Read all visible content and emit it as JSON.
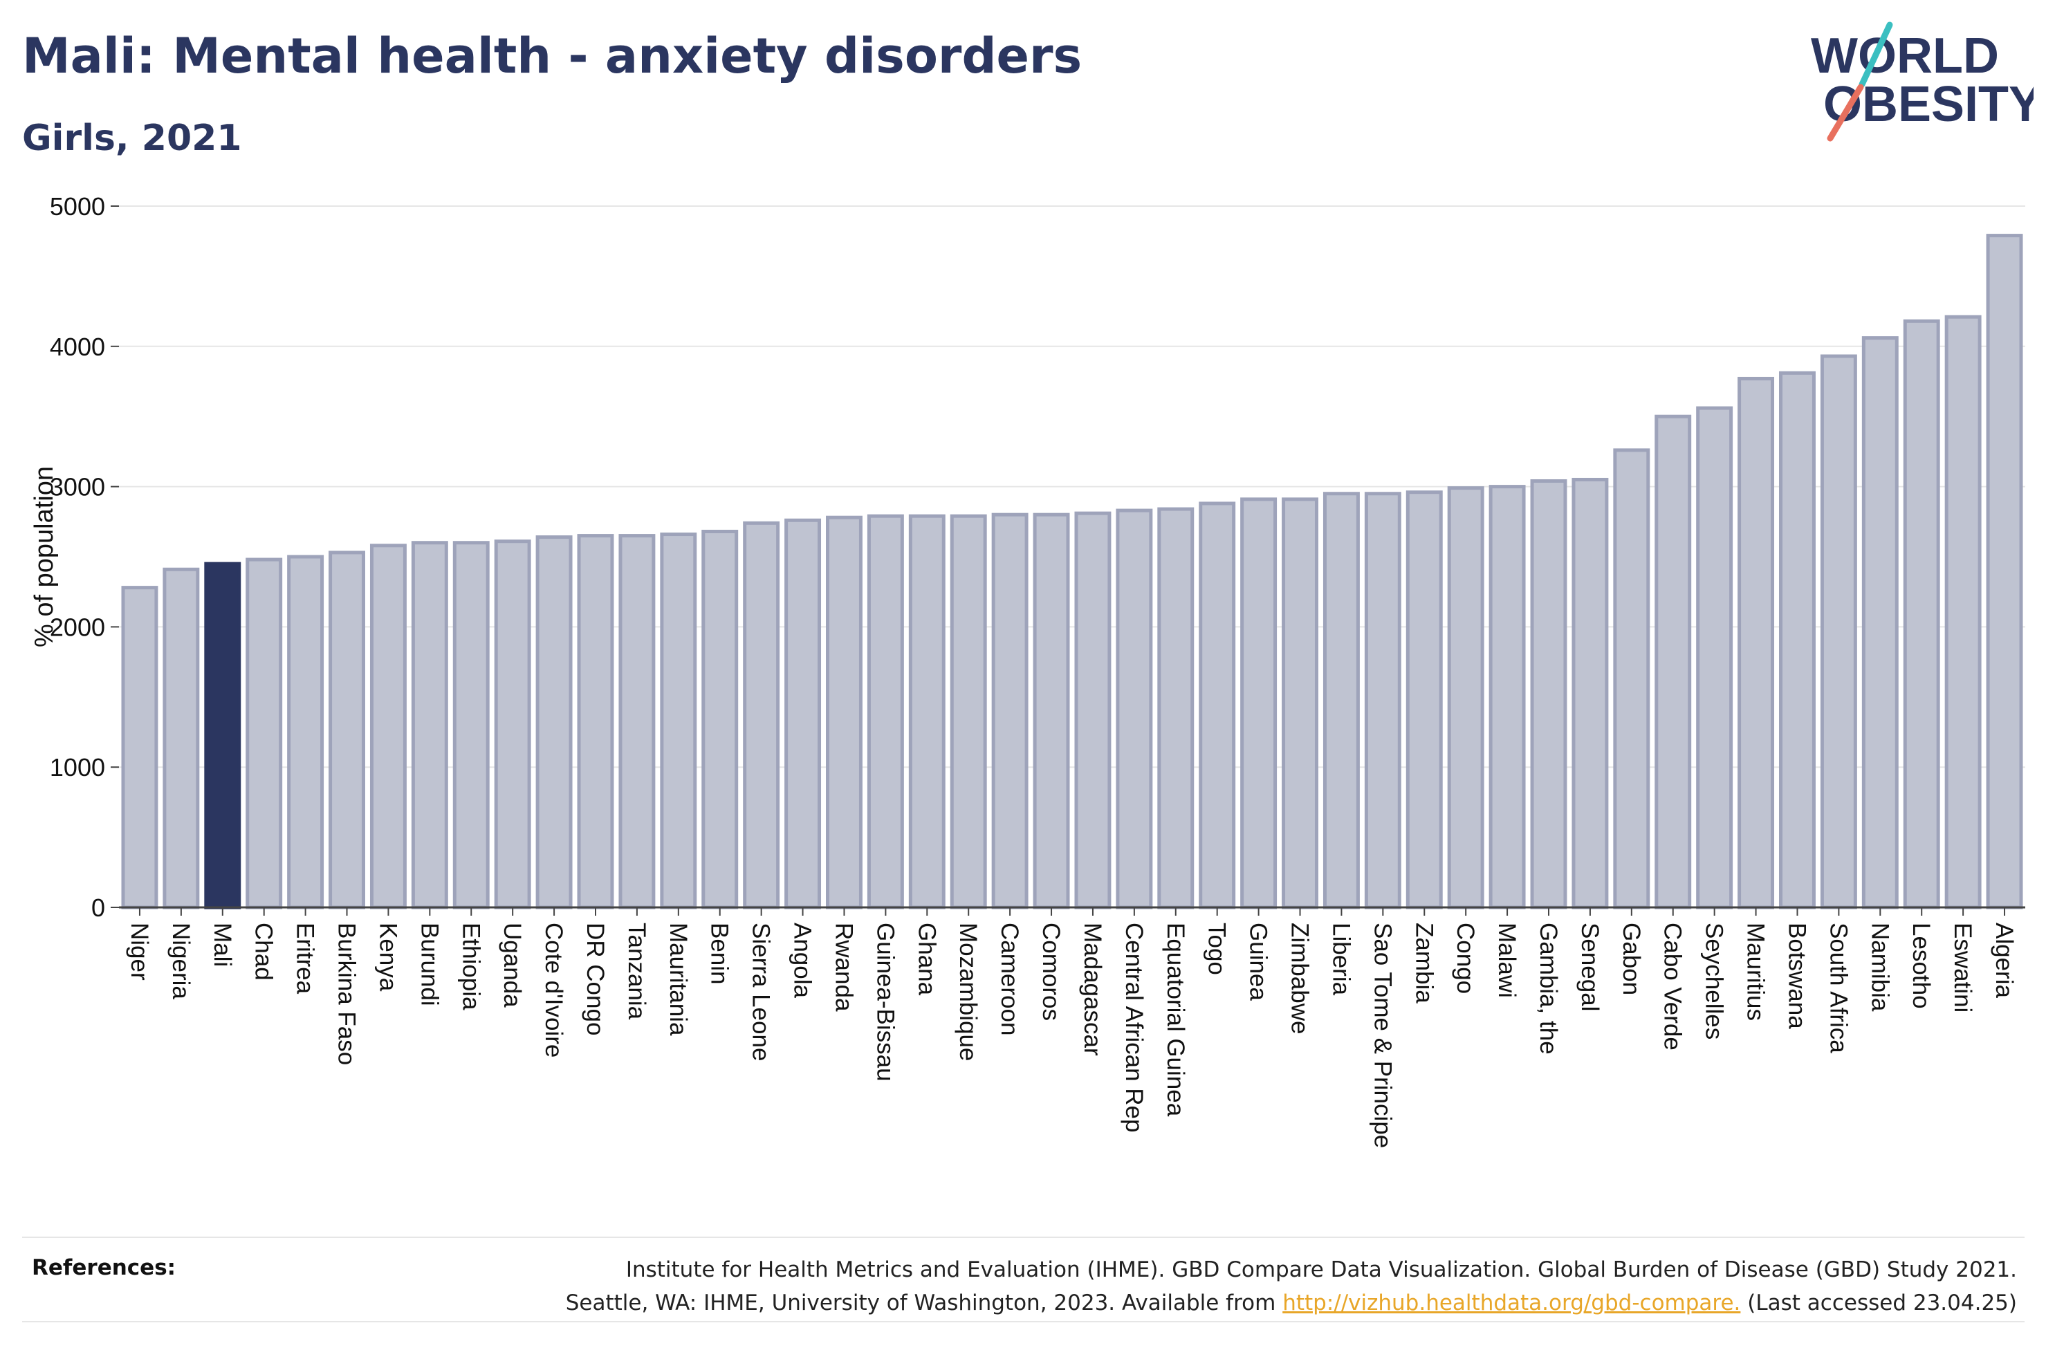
{
  "header": {
    "title": "Mali: Mental health - anxiety disorders",
    "subtitle": "Girls, 2021"
  },
  "logo": {
    "line1": "WORLD",
    "line2": "OBESITY",
    "colors": {
      "text": "#2b3660",
      "slash_top": "#3bbfc1",
      "slash_bottom": "#e8705e"
    }
  },
  "colors": {
    "bar": "#bfc3d1",
    "bar_stroke": "#9ea3ba",
    "highlight": "#2b3660",
    "grid": "#e6e6e6",
    "axis": "#444444"
  },
  "chart_data": {
    "type": "bar",
    "ylabel": "% of population",
    "ylim": [
      0,
      5000
    ],
    "yticks": [
      0,
      1000,
      2000,
      3000,
      4000,
      5000
    ],
    "grid": true,
    "highlight": "Mali",
    "categories": [
      "Niger",
      "Nigeria",
      "Mali",
      "Chad",
      "Eritrea",
      "Burkina Faso",
      "Kenya",
      "Burundi",
      "Ethiopia",
      "Uganda",
      "Cote d'Ivoire",
      "DR Congo",
      "Tanzania",
      "Mauritania",
      "Benin",
      "Sierra Leone",
      "Angola",
      "Rwanda",
      "Guinea-Bissau",
      "Ghana",
      "Mozambique",
      "Cameroon",
      "Comoros",
      "Madagascar",
      "Central African Rep",
      "Equatorial Guinea",
      "Togo",
      "Guinea",
      "Zimbabwe",
      "Liberia",
      "Sao Tome & Principe",
      "Zambia",
      "Congo",
      "Malawi",
      "Gambia, the",
      "Senegal",
      "Gabon",
      "Cabo Verde",
      "Seychelles",
      "Mauritius",
      "Botswana",
      "South Africa",
      "Namibia",
      "Lesotho",
      "Eswatini",
      "Algeria"
    ],
    "values": [
      2280,
      2410,
      2450,
      2480,
      2500,
      2530,
      2580,
      2600,
      2600,
      2610,
      2640,
      2650,
      2650,
      2660,
      2680,
      2740,
      2760,
      2780,
      2790,
      2790,
      2790,
      2800,
      2800,
      2810,
      2830,
      2840,
      2880,
      2910,
      2910,
      2950,
      2950,
      2960,
      2990,
      3000,
      3040,
      3050,
      3260,
      3500,
      3560,
      3770,
      3810,
      3930,
      4060,
      4180,
      4210,
      4790
    ]
  },
  "references": {
    "label": "References:",
    "line1": "Institute for Health Metrics and Evaluation (IHME). GBD Compare Data Visualization. Global Burden of Disease (GBD) Study 2021.",
    "line2_prefix": "Seattle, WA: IHME, University of Washington, 2023. Available from ",
    "link": "http://vizhub.healthdata.org/gbd-compare.",
    "line2_suffix": " (Last accessed 23.04.25)"
  }
}
